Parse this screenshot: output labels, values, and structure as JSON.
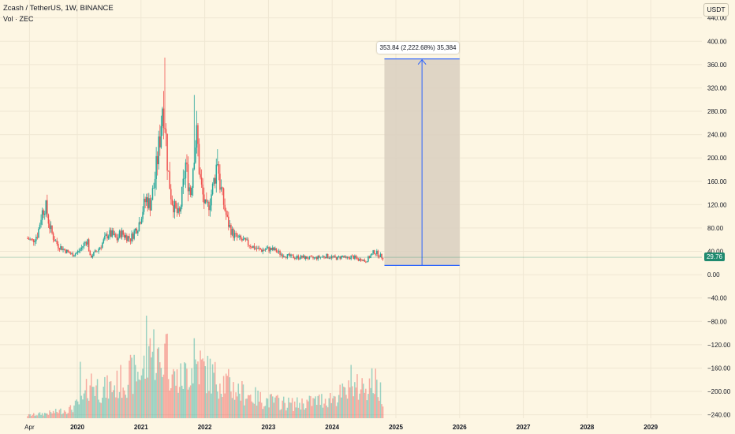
{
  "header": {
    "title": "Zcash / TetherUS, 1W, BINANCE",
    "volume_label": "Vol · ZEC"
  },
  "currency_button": "USDT",
  "last_price_label": "29.76",
  "measure": {
    "label": "353.84 (2,222.68%) 35,384",
    "from_price": 15.9,
    "to_price": 369.7
  },
  "colors": {
    "background": "#fdf6e3",
    "up": "#26a69a",
    "down": "#ef5350",
    "measure_line": "#2962ff",
    "measure_fill": "#d9cfc0",
    "last_price": "#1f8a6f"
  },
  "chart_data": {
    "type": "candlestick",
    "symbol": "Zcash / TetherUS",
    "interval": "1W",
    "exchange": "BINANCE",
    "y_ticks": [
      "440.00",
      "400.00",
      "360.00",
      "320.00",
      "280.00",
      "240.00",
      "200.00",
      "160.00",
      "120.00",
      "80.00",
      "40.00",
      "0.00",
      "−40.00",
      "−80.00",
      "−120.00",
      "−160.00",
      "−200.00",
      "−240.00"
    ],
    "y_tick_values": [
      440,
      400,
      360,
      320,
      280,
      240,
      200,
      160,
      120,
      80,
      40,
      0,
      -40,
      -80,
      -120,
      -160,
      -200,
      -240
    ],
    "x_ticks": [
      {
        "label": "Apr",
        "year": 2019.25,
        "bold": false
      },
      {
        "label": "2020",
        "year": 2020.0,
        "bold": true
      },
      {
        "label": "2021",
        "year": 2021.0,
        "bold": true
      },
      {
        "label": "2022",
        "year": 2022.0,
        "bold": true
      },
      {
        "label": "2023",
        "year": 2023.0,
        "bold": true
      },
      {
        "label": "2024",
        "year": 2024.0,
        "bold": true
      },
      {
        "label": "2025",
        "year": 2025.0,
        "bold": true
      },
      {
        "label": "2026",
        "year": 2026.0,
        "bold": true
      },
      {
        "label": "2027",
        "year": 2027.0,
        "bold": true
      },
      {
        "label": "2028",
        "year": 2028.0,
        "bold": true
      },
      {
        "label": "2029",
        "year": 2029.0,
        "bold": true
      }
    ],
    "price_anchors": [
      [
        2019.22,
        62
      ],
      [
        2019.3,
        58
      ],
      [
        2019.38,
        70
      ],
      [
        2019.44,
        105
      ],
      [
        2019.5,
        120
      ],
      [
        2019.56,
        85
      ],
      [
        2019.62,
        65
      ],
      [
        2019.7,
        50
      ],
      [
        2019.78,
        44
      ],
      [
        2019.86,
        38
      ],
      [
        2019.92,
        34
      ],
      [
        2020.0,
        38
      ],
      [
        2020.06,
        45
      ],
      [
        2020.12,
        55
      ],
      [
        2020.16,
        60
      ],
      [
        2020.2,
        30
      ],
      [
        2020.25,
        35
      ],
      [
        2020.32,
        42
      ],
      [
        2020.4,
        55
      ],
      [
        2020.48,
        70
      ],
      [
        2020.56,
        68
      ],
      [
        2020.62,
        60
      ],
      [
        2020.68,
        72
      ],
      [
        2020.76,
        66
      ],
      [
        2020.84,
        62
      ],
      [
        2020.9,
        75
      ],
      [
        2020.96,
        85
      ],
      [
        2021.02,
        110
      ],
      [
        2021.08,
        130
      ],
      [
        2021.14,
        120
      ],
      [
        2021.2,
        150
      ],
      [
        2021.26,
        200
      ],
      [
        2021.3,
        240
      ],
      [
        2021.34,
        300
      ],
      [
        2021.38,
        260
      ],
      [
        2021.42,
        180
      ],
      [
        2021.48,
        130
      ],
      [
        2021.54,
        110
      ],
      [
        2021.6,
        100
      ],
      [
        2021.66,
        150
      ],
      [
        2021.7,
        190
      ],
      [
        2021.74,
        160
      ],
      [
        2021.78,
        140
      ],
      [
        2021.84,
        220
      ],
      [
        2021.88,
        240
      ],
      [
        2021.92,
        170
      ],
      [
        2021.96,
        140
      ],
      [
        2022.02,
        110
      ],
      [
        2022.06,
        120
      ],
      [
        2022.12,
        145
      ],
      [
        2022.16,
        170
      ],
      [
        2022.2,
        200
      ],
      [
        2022.24,
        155
      ],
      [
        2022.3,
        120
      ],
      [
        2022.36,
        90
      ],
      [
        2022.44,
        70
      ],
      [
        2022.52,
        62
      ],
      [
        2022.6,
        58
      ],
      [
        2022.7,
        52
      ],
      [
        2022.8,
        45
      ],
      [
        2022.9,
        42
      ],
      [
        2023.0,
        44
      ],
      [
        2023.1,
        42
      ],
      [
        2023.2,
        35
      ],
      [
        2023.3,
        32
      ],
      [
        2023.4,
        30
      ],
      [
        2023.5,
        30
      ],
      [
        2023.6,
        29
      ],
      [
        2023.7,
        28
      ],
      [
        2023.8,
        30
      ],
      [
        2023.9,
        32
      ],
      [
        2024.0,
        30
      ],
      [
        2024.08,
        28
      ],
      [
        2024.16,
        32
      ],
      [
        2024.22,
        27
      ],
      [
        2024.3,
        31
      ],
      [
        2024.36,
        29
      ],
      [
        2024.42,
        25
      ],
      [
        2024.46,
        28
      ],
      [
        2024.52,
        22
      ],
      [
        2024.58,
        30
      ],
      [
        2024.62,
        34
      ],
      [
        2024.66,
        40
      ],
      [
        2024.72,
        35
      ],
      [
        2024.77,
        31
      ],
      [
        2024.8,
        29.76
      ]
    ],
    "highs": [
      {
        "year": 2021.38,
        "value": 372
      },
      {
        "year": 2021.84,
        "value": 308
      },
      {
        "year": 2022.2,
        "value": 215
      },
      {
        "year": 2019.5,
        "value": 125
      }
    ],
    "volume_anchors": [
      [
        2019.22,
        0.03
      ],
      [
        2019.6,
        0.06
      ],
      [
        2019.9,
        0.1
      ],
      [
        2020.1,
        0.2
      ],
      [
        2020.2,
        0.4
      ],
      [
        2020.4,
        0.3
      ],
      [
        2020.6,
        0.35
      ],
      [
        2020.8,
        0.45
      ],
      [
        2021.0,
        0.5
      ],
      [
        2021.1,
        0.6
      ],
      [
        2021.2,
        0.75
      ],
      [
        2021.3,
        0.55
      ],
      [
        2021.4,
        0.7
      ],
      [
        2021.5,
        0.45
      ],
      [
        2021.6,
        0.4
      ],
      [
        2021.8,
        0.55
      ],
      [
        2021.9,
        0.6
      ],
      [
        2022.0,
        0.5
      ],
      [
        2022.1,
        0.45
      ],
      [
        2022.3,
        0.4
      ],
      [
        2022.5,
        0.3
      ],
      [
        2022.7,
        0.25
      ],
      [
        2022.9,
        0.2
      ],
      [
        2023.1,
        0.18
      ],
      [
        2023.4,
        0.15
      ],
      [
        2023.7,
        0.18
      ],
      [
        2024.0,
        0.22
      ],
      [
        2024.3,
        0.3
      ],
      [
        2024.5,
        0.35
      ],
      [
        2024.65,
        0.4
      ],
      [
        2024.8,
        0.25
      ]
    ],
    "volume_spikes": [
      {
        "year": 2021.08,
        "value": 1.0
      },
      {
        "year": 2021.14,
        "value": 0.78
      },
      {
        "year": 2021.4,
        "value": 0.82
      },
      {
        "year": 2021.84,
        "value": 0.78
      },
      {
        "year": 2020.05,
        "value": 0.55
      },
      {
        "year": 2022.08,
        "value": 0.58
      },
      {
        "year": 2024.3,
        "value": 0.52
      }
    ]
  }
}
